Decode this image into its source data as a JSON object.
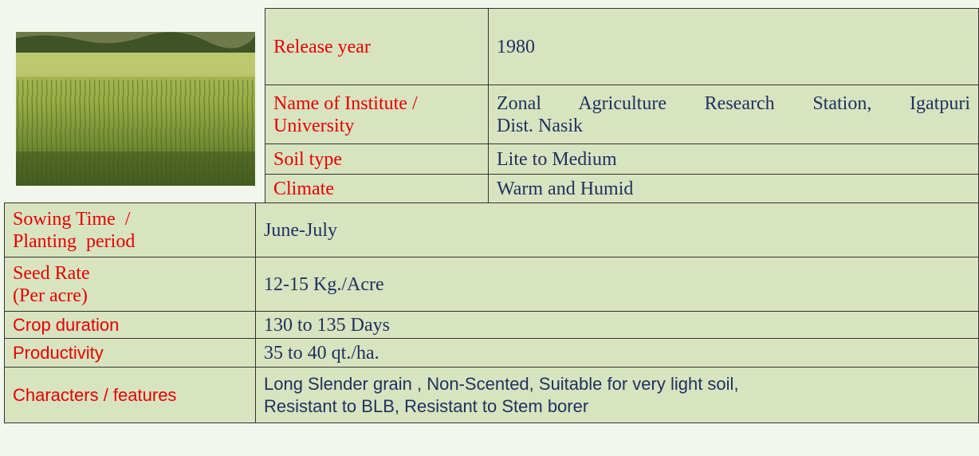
{
  "top_table": {
    "rows": [
      {
        "label": [
          "Release year"
        ],
        "value": [
          "1980"
        ]
      },
      {
        "label": [
          "Name of Institute /",
          "University"
        ],
        "value": [
          "Zonal Agriculture Research Station, Igatpuri",
          "Dist. Nasik"
        ]
      },
      {
        "label": [
          "Soil type"
        ],
        "value": [
          "Lite to Medium"
        ]
      },
      {
        "label": [
          "Climate"
        ],
        "value": [
          "Warm and Humid"
        ]
      }
    ]
  },
  "bottom_table": {
    "rows": [
      {
        "label": [
          "Sowing Time  /",
          "Planting  period"
        ],
        "value": [
          "June-July"
        ]
      },
      {
        "label": [
          "Seed Rate",
          "(Per acre)"
        ],
        "value": [
          "12-15 Kg./Acre"
        ]
      },
      {
        "label": [
          "Crop duration"
        ],
        "value": [
          "130 to 135 Days"
        ]
      },
      {
        "label": [
          "Productivity"
        ],
        "value": [
          "35 to 40 qt./ha."
        ]
      },
      {
        "label": [
          "Characters / features"
        ],
        "value": [
          "Long Slender grain , Non-Scented, Suitable for very light soil,",
          "Resistant to BLB, Resistant to Stem borer"
        ]
      }
    ]
  }
}
